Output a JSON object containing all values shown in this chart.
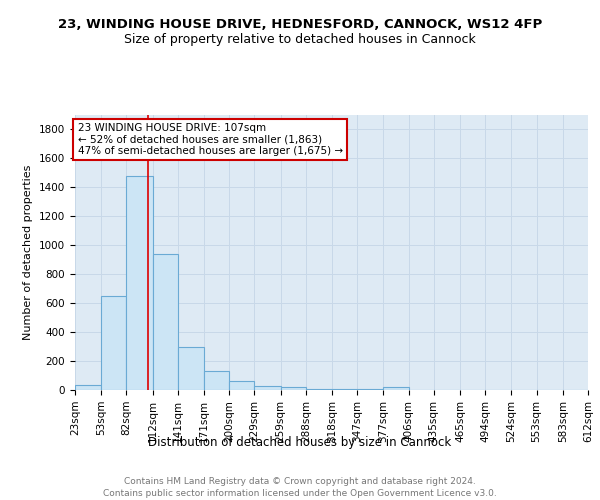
{
  "title": "23, WINDING HOUSE DRIVE, HEDNESFORD, CANNOCK, WS12 4FP",
  "subtitle": "Size of property relative to detached houses in Cannock",
  "xlabel": "Distribution of detached houses by size in Cannock",
  "ylabel": "Number of detached properties",
  "bin_edges": [
    23,
    53,
    82,
    112,
    141,
    171,
    200,
    229,
    259,
    288,
    318,
    347,
    377,
    406,
    435,
    465,
    494,
    524,
    553,
    583,
    612
  ],
  "bar_heights": [
    35,
    650,
    1480,
    940,
    295,
    130,
    65,
    25,
    20,
    5,
    5,
    5,
    20,
    0,
    0,
    0,
    0,
    0,
    0,
    0
  ],
  "bar_color": "#cce5f5",
  "bar_edge_color": "#6aaad4",
  "bar_edge_width": 0.8,
  "red_line_x": 107,
  "red_line_color": "#dd0000",
  "annotation_line1": "23 WINDING HOUSE DRIVE: 107sqm",
  "annotation_line2": "← 52% of detached houses are smaller (1,863)",
  "annotation_line3": "47% of semi-detached houses are larger (1,675) →",
  "annotation_box_color": "#cc0000",
  "ylim": [
    0,
    1900
  ],
  "yticks": [
    0,
    200,
    400,
    600,
    800,
    1000,
    1200,
    1400,
    1600,
    1800
  ],
  "grid_color": "#c8d8e8",
  "plot_bg_color": "#deeaf4",
  "footer_text": "Contains HM Land Registry data © Crown copyright and database right 2024.\nContains public sector information licensed under the Open Government Licence v3.0.",
  "title_fontsize": 9.5,
  "subtitle_fontsize": 9,
  "xlabel_fontsize": 8.5,
  "ylabel_fontsize": 8,
  "tick_fontsize": 7.5,
  "annotation_fontsize": 7.5,
  "footer_fontsize": 6.5
}
